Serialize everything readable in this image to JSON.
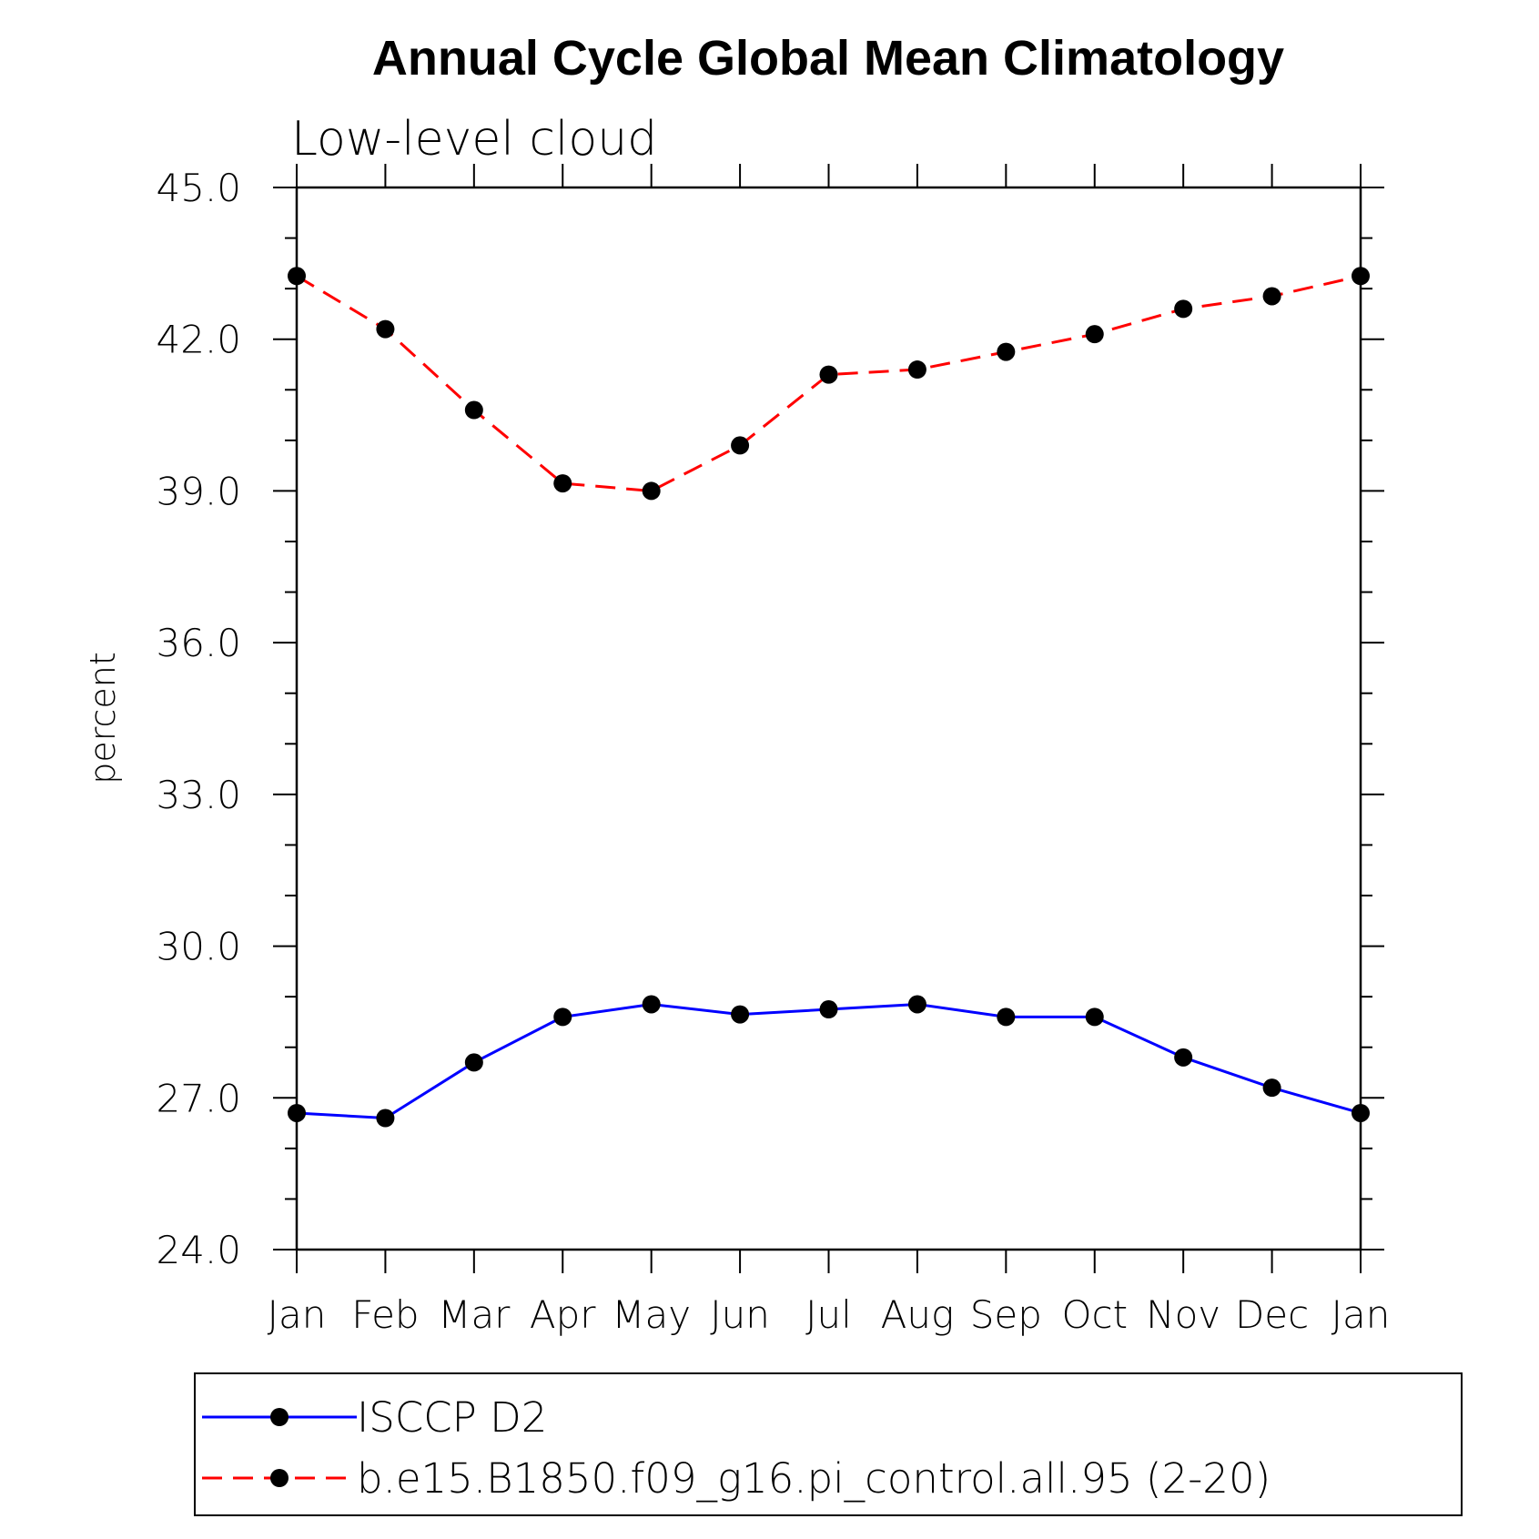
{
  "chart_data": {
    "type": "line",
    "title": "Annual Cycle Global Mean Climatology",
    "subtitle": "Low-level cloud",
    "xlabel": "",
    "ylabel": "percent",
    "categories": [
      "Jan",
      "Feb",
      "Mar",
      "Apr",
      "May",
      "Jun",
      "Jul",
      "Aug",
      "Sep",
      "Oct",
      "Nov",
      "Dec",
      "Jan"
    ],
    "ylim": [
      24.0,
      45.0
    ],
    "yticks": [
      "24.0",
      "27.0",
      "30.0",
      "33.0",
      "36.0",
      "39.0",
      "42.0",
      "45.0"
    ],
    "series": [
      {
        "name": "ISCCP D2",
        "color": "#0000ff",
        "dash": "solid",
        "values": [
          26.7,
          26.6,
          27.7,
          28.6,
          28.85,
          28.65,
          28.75,
          28.85,
          28.6,
          28.6,
          27.8,
          27.2,
          26.7
        ]
      },
      {
        "name": "b.e15.B1850.f09_g16.pi_control.all.95 (2-20)",
        "color": "#ff0000",
        "dash": "dashed",
        "values": [
          43.25,
          42.2,
          40.6,
          39.15,
          39.0,
          39.9,
          41.3,
          41.4,
          41.75,
          42.1,
          42.6,
          42.85,
          43.25
        ]
      }
    ],
    "grid": false,
    "legend_position": "bottom"
  }
}
